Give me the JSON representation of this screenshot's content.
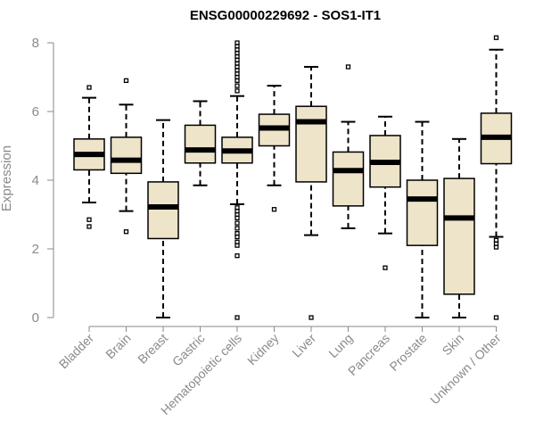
{
  "chart_data": {
    "type": "boxplot",
    "title": "ENSG00000229692 - SOS1-IT1",
    "xlabel": "",
    "ylabel": "Expression",
    "ylim": [
      0,
      8
    ],
    "yticks": [
      0,
      2,
      4,
      6,
      8
    ],
    "box_fill": "#ede4c9",
    "categories": [
      "Bladder",
      "Brain",
      "Breast",
      "Gastric",
      "Hematopoietic cells",
      "Kidney",
      "Liver",
      "Lung",
      "Pancreas",
      "Prostate",
      "Skin",
      "Unknown / Other"
    ],
    "boxes": [
      {
        "min": 3.35,
        "q1": 4.3,
        "median": 4.75,
        "q3": 5.2,
        "max": 6.4,
        "outliers": [
          2.85,
          2.65,
          6.7
        ]
      },
      {
        "min": 3.1,
        "q1": 4.2,
        "median": 4.58,
        "q3": 5.25,
        "max": 6.2,
        "outliers": [
          2.5,
          6.9
        ]
      },
      {
        "min": 0.0,
        "q1": 2.3,
        "median": 3.22,
        "q3": 3.95,
        "max": 5.75,
        "outliers": []
      },
      {
        "min": 3.85,
        "q1": 4.5,
        "median": 4.88,
        "q3": 5.6,
        "max": 6.3,
        "outliers": []
      },
      {
        "min": 3.3,
        "q1": 4.5,
        "median": 4.85,
        "q3": 5.25,
        "max": 6.45,
        "outliers": [
          0.0,
          1.8,
          2.1,
          2.2,
          2.35,
          2.45,
          2.6,
          2.75,
          2.9,
          3.0,
          3.1,
          3.2,
          6.6,
          6.75,
          6.9,
          7.0,
          7.1,
          7.2,
          7.3,
          7.4,
          7.5,
          7.6,
          7.7,
          7.8,
          7.9,
          8.0
        ]
      },
      {
        "min": 3.85,
        "q1": 5.0,
        "median": 5.52,
        "q3": 5.92,
        "max": 6.75,
        "outliers": [
          3.15
        ]
      },
      {
        "min": 2.4,
        "q1": 3.95,
        "median": 5.7,
        "q3": 6.15,
        "max": 7.3,
        "outliers": [
          0.0
        ]
      },
      {
        "min": 2.6,
        "q1": 3.25,
        "median": 4.28,
        "q3": 4.82,
        "max": 5.7,
        "outliers": [
          7.3
        ]
      },
      {
        "min": 2.45,
        "q1": 3.8,
        "median": 4.52,
        "q3": 5.3,
        "max": 5.85,
        "outliers": [
          1.45
        ]
      },
      {
        "min": 0.0,
        "q1": 2.1,
        "median": 3.45,
        "q3": 4.0,
        "max": 5.7,
        "outliers": []
      },
      {
        "min": 0.0,
        "q1": 0.68,
        "median": 2.9,
        "q3": 4.05,
        "max": 5.2,
        "outliers": []
      },
      {
        "min": 2.35,
        "q1": 4.48,
        "median": 5.25,
        "q3": 5.95,
        "max": 7.8,
        "outliers": [
          0.0,
          2.05,
          2.15,
          2.25,
          8.15
        ]
      }
    ]
  }
}
